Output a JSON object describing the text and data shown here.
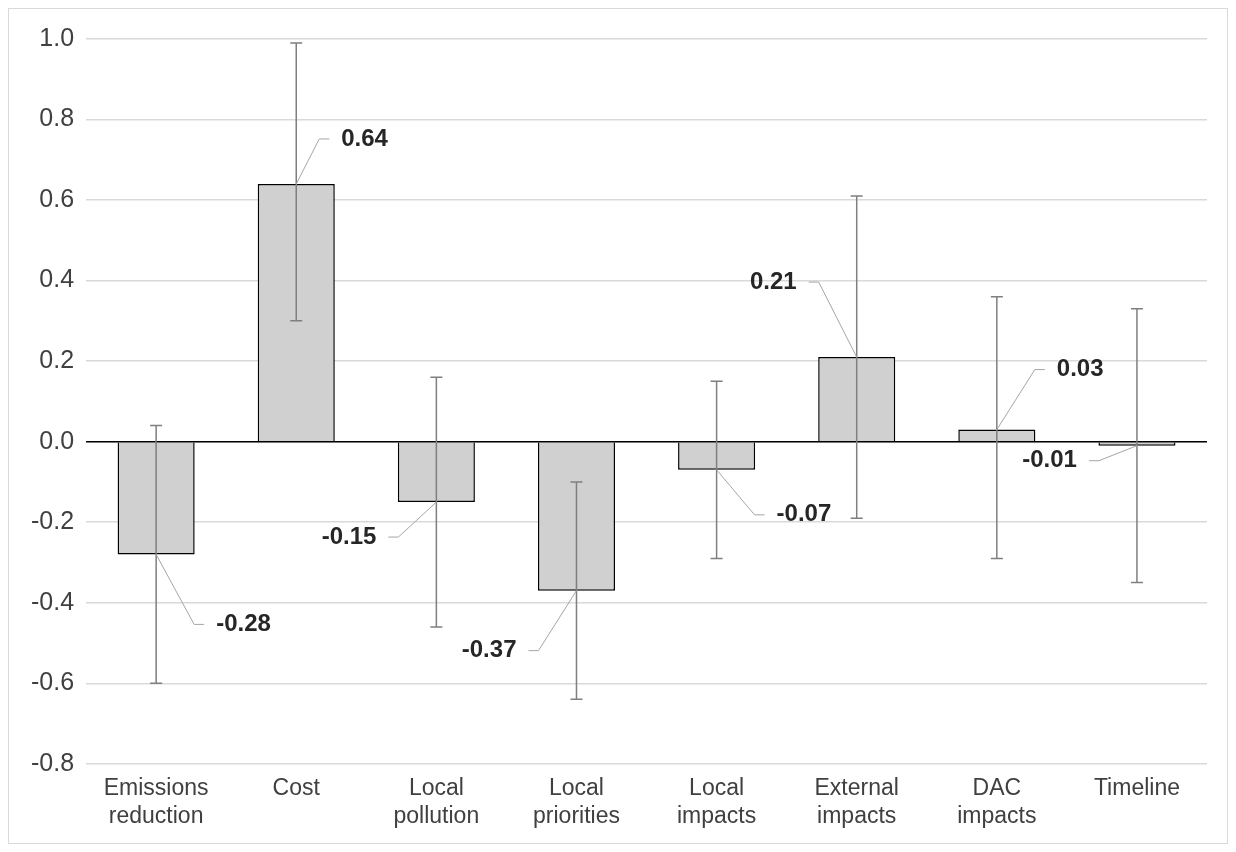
{
  "chart_data": {
    "type": "bar",
    "categories": [
      "Emissions reduction",
      "Cost",
      "Local pollution",
      "Local priorities",
      "Local impacts",
      "External impacts",
      "DAC impacts",
      "Timeline"
    ],
    "values": [
      -0.28,
      0.64,
      -0.15,
      -0.37,
      -0.07,
      0.21,
      0.03,
      -0.01
    ],
    "color": "#d0d0d0",
    "errors": [
      [
        -0.6,
        0.04
      ],
      [
        0.3,
        0.99
      ],
      [
        -0.46,
        0.16
      ],
      [
        -0.64,
        -0.1
      ],
      [
        -0.29,
        0.15
      ],
      [
        -0.19,
        0.61
      ],
      [
        -0.29,
        0.36
      ],
      [
        -0.35,
        0.33
      ]
    ],
    "data_labels": true,
    "ylim": [
      -0.8,
      1.0
    ],
    "yticks": [
      {
        "value": -0.8,
        "label": "-0.8"
      },
      {
        "value": -0.6,
        "label": "-0.6"
      },
      {
        "value": -0.4,
        "label": "-0.4"
      },
      {
        "value": -0.2,
        "label": "-0.2"
      },
      {
        "value": 0,
        "label": "0.0"
      },
      {
        "value": 0.2,
        "label": "0.2"
      },
      {
        "value": 0.4,
        "label": "0.4"
      },
      {
        "value": 0.6,
        "label": "0.6"
      },
      {
        "value": 0.8,
        "label": "0.8"
      },
      {
        "value": 1.0,
        "label": "1.0"
      }
    ],
    "grid": "y",
    "legend": false
  }
}
